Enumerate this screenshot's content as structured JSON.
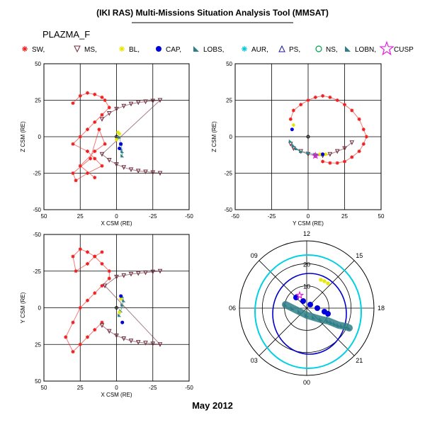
{
  "header": {
    "title": "(IKI RAS) Multi-Missions Situation Analysis Tool (MMSAT)",
    "mission": "PLAZMA_F",
    "footer": "May 2012"
  },
  "legend": [
    {
      "label": "SW,",
      "symbol": "star",
      "color": "#ee2020"
    },
    {
      "label": "MS,",
      "symbol": "tri-down",
      "color": "#6e2a3a"
    },
    {
      "label": "BL,",
      "symbol": "sparkle",
      "color": "#e6e600"
    },
    {
      "label": "CAP,",
      "symbol": "dot",
      "color": "#0000dd"
    },
    {
      "label": "LOBS,",
      "symbol": "wedge",
      "color": "#2e7f86"
    },
    {
      "label": "AUR,",
      "symbol": "asterisk",
      "color": "#00c8d8"
    },
    {
      "label": "PS,",
      "symbol": "tri-up",
      "color": "#1a1a9e"
    },
    {
      "label": "NS,",
      "symbol": "circle",
      "color": "#00a050"
    },
    {
      "label": "LOBN,",
      "symbol": "wedge",
      "color": "#2e7f86"
    },
    {
      "label": "CUSP",
      "symbol": "star-outline",
      "color": "#e020e0"
    }
  ],
  "chart_data": [
    {
      "type": "scatter",
      "panel": "XZ",
      "xlabel": "X CSM (RE)",
      "ylabel": "Z CSM (RE)",
      "xlim": [
        50,
        -50
      ],
      "ylim": [
        -50,
        50
      ],
      "xticks": [
        "50",
        "25",
        "0",
        "-25",
        "-50"
      ],
      "yticks": [
        "50",
        "25",
        "0",
        "-25",
        "-50"
      ],
      "series": [
        {
          "class": "SW",
          "x": [
            30,
            25,
            20,
            15,
            10,
            8,
            5,
            10,
            15,
            20,
            25,
            30,
            20,
            15,
            10,
            20,
            28,
            30,
            18,
            12,
            8,
            15,
            25,
            15
          ],
          "y": [
            23,
            28,
            30,
            29,
            27,
            25,
            20,
            15,
            10,
            5,
            0,
            -5,
            -10,
            -15,
            -20,
            -25,
            -30,
            -25,
            -15,
            5,
            -5,
            -10,
            -20,
            -28
          ]
        },
        {
          "class": "MS",
          "x": [
            10,
            5,
            0,
            -5,
            -10,
            -15,
            -20,
            -25,
            -30,
            10,
            5,
            0,
            -5,
            -10,
            -15,
            -20,
            -25,
            -30
          ],
          "y": [
            12,
            16,
            19,
            21,
            22.5,
            23.5,
            24,
            24.5,
            25,
            -12,
            -16,
            -19,
            -21,
            -22.5,
            -23.5,
            -24,
            -24.5,
            -25
          ]
        },
        {
          "class": "LOBS",
          "x": [
            -2,
            -3,
            -4,
            -4,
            -3
          ],
          "y": [
            0,
            -5,
            -10,
            -13,
            -8
          ]
        },
        {
          "class": "BL",
          "x": [
            -1,
            0,
            -2
          ],
          "y": [
            3,
            -2,
            2
          ]
        },
        {
          "class": "CAP",
          "x": [
            -3,
            -2
          ],
          "y": [
            -5,
            -8
          ]
        }
      ]
    },
    {
      "type": "scatter",
      "panel": "YZ",
      "xlabel": "Y CSM (RE)",
      "ylabel": "Z CSM (RE)",
      "xlim": [
        -50,
        50
      ],
      "ylim": [
        -50,
        50
      ],
      "xticks": [
        "-50",
        "-25",
        "0",
        "25",
        "50"
      ],
      "yticks": [
        "50",
        "25",
        "0",
        "-25",
        "-50"
      ],
      "series": [
        {
          "class": "SW",
          "x": [
            -12,
            -10,
            -5,
            0,
            5,
            10,
            15,
            20,
            25,
            30,
            35,
            38,
            40,
            38,
            35,
            30,
            25,
            20,
            15,
            10
          ],
          "y": [
            12,
            18,
            22,
            25,
            27,
            28,
            27,
            25,
            22,
            18,
            12,
            5,
            0,
            -5,
            -10,
            -14,
            -17,
            -18,
            -18,
            -17
          ]
        },
        {
          "class": "MS",
          "x": [
            -12,
            -10,
            -5,
            0,
            5,
            10,
            15,
            20,
            25,
            30
          ],
          "y": [
            -5,
            -8,
            -10,
            -12,
            -13,
            -13,
            -12,
            -10,
            -8,
            -4
          ]
        },
        {
          "class": "LOBS",
          "x": [
            -12,
            -10,
            -8,
            -5,
            0,
            5,
            10
          ],
          "y": [
            -3,
            -6,
            -8,
            -10,
            -11,
            -12,
            -12
          ]
        },
        {
          "class": "BL",
          "x": [
            -10,
            8,
            12
          ],
          "y": [
            8,
            -12,
            -12
          ]
        },
        {
          "class": "CAP",
          "x": [
            -11,
            10
          ],
          "y": [
            5,
            -12
          ]
        },
        {
          "class": "CUSP",
          "x": [
            5
          ],
          "y": [
            -13
          ]
        }
      ]
    },
    {
      "type": "scatter",
      "panel": "XY",
      "xlabel": "X CSM (RE)",
      "ylabel": "Y CSM (RE)",
      "xlim": [
        50,
        -50
      ],
      "ylim": [
        -50,
        50
      ],
      "xticks": [
        "50",
        "25",
        "0",
        "-25",
        "-50"
      ],
      "yticks": [
        "-50",
        "-25",
        "0",
        "25",
        "50"
      ],
      "series": [
        {
          "class": "SW",
          "x": [
            10,
            15,
            20,
            25,
            30,
            35,
            30,
            25,
            20,
            15,
            10,
            5,
            5,
            10,
            15,
            20,
            25,
            30,
            28,
            20,
            15,
            10
          ],
          "y": [
            -10,
            -15,
            -20,
            -25,
            -30,
            -20,
            -10,
            0,
            5,
            10,
            15,
            20,
            25,
            30,
            35,
            38,
            40,
            35,
            25,
            30,
            35,
            38
          ]
        },
        {
          "class": "MS",
          "x": [
            10,
            5,
            0,
            -5,
            -10,
            -15,
            -20,
            -25,
            -30,
            8,
            0,
            -5,
            -10,
            -15,
            -20,
            -25,
            -30
          ],
          "y": [
            -12,
            -16,
            -19,
            -21,
            -22.5,
            -23.5,
            -24,
            -24.5,
            -25,
            15,
            21,
            22,
            23,
            23.5,
            24,
            24.5,
            25
          ]
        },
        {
          "class": "LOBS",
          "x": [
            -2,
            -3,
            -4,
            -5,
            -4
          ],
          "y": [
            -5,
            -2,
            2,
            5,
            8
          ]
        },
        {
          "class": "BL",
          "x": [
            -2,
            -3
          ],
          "y": [
            -3,
            6
          ]
        },
        {
          "class": "CAP",
          "x": [
            -4,
            -3
          ],
          "y": [
            -10,
            8
          ]
        }
      ]
    },
    {
      "type": "scatter",
      "panel": "polar",
      "angle_labels": [
        "12",
        "09",
        "06",
        "03",
        "00",
        "21",
        "18",
        "15"
      ],
      "radius_labels": [
        "20",
        "10"
      ],
      "rings": [
        {
          "name": "outer",
          "color": "#00d0e0"
        },
        {
          "name": "inner",
          "color": "#0000cc"
        }
      ],
      "series": [
        {
          "class": "LOBS",
          "x": [
            -30,
            -20,
            -10,
            0,
            10,
            20,
            30,
            35,
            40,
            45,
            50,
            55,
            60
          ],
          "y": [
            5,
            0,
            -5,
            -10,
            -13,
            -16,
            -18,
            -20,
            -22,
            -24,
            -25,
            -26,
            -28
          ]
        },
        {
          "class": "CAP",
          "x": [
            -15,
            -5,
            5,
            15,
            25,
            30
          ],
          "y": [
            15,
            10,
            5,
            0,
            -5,
            -8
          ]
        },
        {
          "class": "BL",
          "x": [
            20,
            25,
            30
          ],
          "y": [
            40,
            38,
            35
          ]
        },
        {
          "class": "CUSP",
          "x": [
            -10
          ],
          "y": [
            18
          ]
        }
      ]
    }
  ]
}
